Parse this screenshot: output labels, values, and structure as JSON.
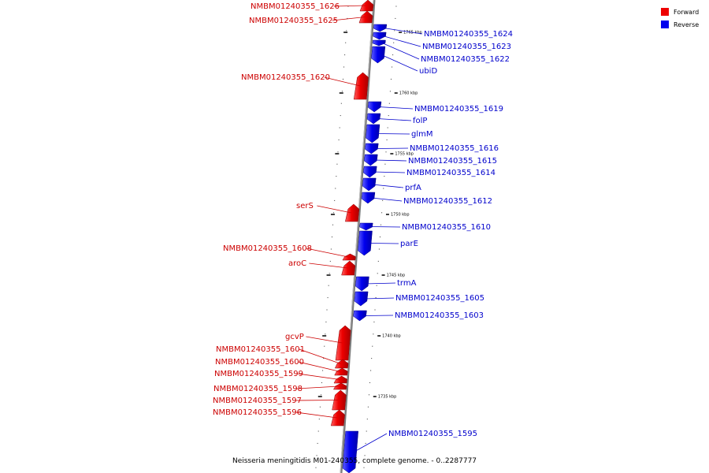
{
  "caption": "Neisseria meningitidis M01-240355, complete genome. - 0..2287777",
  "legend": {
    "forward": {
      "label": "Forward",
      "color": "#ee0000"
    },
    "reverse": {
      "label": "Reverse",
      "color": "#0000ee"
    }
  },
  "axis": {
    "unit": "kbp",
    "ticks": [
      {
        "kbp": 1765,
        "label": "1765 kbp"
      },
      {
        "kbp": 1760,
        "label": "1760 kbp"
      },
      {
        "kbp": 1755,
        "label": "1755 kbp"
      },
      {
        "kbp": 1750,
        "label": "1750 kbp"
      },
      {
        "kbp": 1745,
        "label": "1745 kbp"
      },
      {
        "kbp": 1740,
        "label": "1740 kbp"
      },
      {
        "kbp": 1735,
        "label": "1735 kbp"
      }
    ]
  },
  "genes": [
    {
      "name": "NMBM01240355_1626",
      "strand": "forward"
    },
    {
      "name": "NMBM01240355_1625",
      "strand": "forward"
    },
    {
      "name": "NMBM01240355_1624",
      "strand": "reverse"
    },
    {
      "name": "NMBM01240355_1623",
      "strand": "reverse"
    },
    {
      "name": "NMBM01240355_1622",
      "strand": "reverse"
    },
    {
      "name": "ubiD",
      "strand": "reverse"
    },
    {
      "name": "NMBM01240355_1620",
      "strand": "forward"
    },
    {
      "name": "NMBM01240355_1619",
      "strand": "reverse"
    },
    {
      "name": "folP",
      "strand": "reverse"
    },
    {
      "name": "glmM",
      "strand": "reverse"
    },
    {
      "name": "NMBM01240355_1616",
      "strand": "reverse"
    },
    {
      "name": "NMBM01240355_1615",
      "strand": "reverse"
    },
    {
      "name": "NMBM01240355_1614",
      "strand": "reverse"
    },
    {
      "name": "prfA",
      "strand": "reverse"
    },
    {
      "name": "NMBM01240355_1612",
      "strand": "reverse"
    },
    {
      "name": "serS",
      "strand": "forward"
    },
    {
      "name": "NMBM01240355_1610",
      "strand": "reverse"
    },
    {
      "name": "parE",
      "strand": "reverse"
    },
    {
      "name": "NMBM01240355_1608",
      "strand": "forward"
    },
    {
      "name": "aroC",
      "strand": "forward"
    },
    {
      "name": "trmA",
      "strand": "reverse"
    },
    {
      "name": "NMBM01240355_1605",
      "strand": "reverse"
    },
    {
      "name": "NMBM01240355_1603",
      "strand": "reverse"
    },
    {
      "name": "gcvP",
      "strand": "forward"
    },
    {
      "name": "NMBM01240355_1601",
      "strand": "forward"
    },
    {
      "name": "NMBM01240355_1600",
      "strand": "forward"
    },
    {
      "name": "NMBM01240355_1599",
      "strand": "forward"
    },
    {
      "name": "NMBM01240355_1598",
      "strand": "forward"
    },
    {
      "name": "NMBM01240355_1597",
      "strand": "forward"
    },
    {
      "name": "NMBM01240355_1596",
      "strand": "forward"
    },
    {
      "name": "NMBM01240355_1595",
      "strand": "reverse"
    }
  ]
}
